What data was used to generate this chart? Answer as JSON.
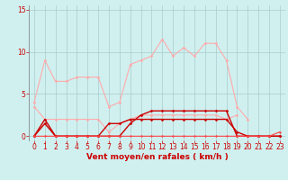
{
  "x": [
    0,
    1,
    2,
    3,
    4,
    5,
    6,
    7,
    8,
    9,
    10,
    11,
    12,
    13,
    14,
    15,
    16,
    17,
    18,
    19,
    20,
    21,
    22,
    23
  ],
  "lines": [
    {
      "y": [
        4.0,
        9.0,
        6.5,
        6.5,
        7.0,
        7.0,
        7.0,
        3.5,
        4.0,
        8.5,
        9.0,
        9.5,
        11.5,
        9.5,
        10.5,
        9.5,
        11.0,
        11.0,
        9.0,
        3.5,
        2.0,
        null,
        null,
        null
      ],
      "color": "#ffaaaa",
      "lw": 0.8,
      "marker": "D",
      "ms": 1.5
    },
    {
      "y": [
        3.5,
        2.0,
        2.0,
        2.0,
        2.0,
        2.0,
        2.0,
        0.5,
        1.5,
        2.0,
        2.5,
        2.5,
        2.5,
        2.5,
        2.5,
        2.5,
        2.5,
        2.5,
        2.0,
        2.5,
        null,
        null,
        null,
        null
      ],
      "color": "#ffaaaa",
      "lw": 0.8,
      "marker": "D",
      "ms": 1.5
    },
    {
      "y": [
        0.0,
        2.0,
        0.0,
        0.0,
        0.0,
        0.0,
        0.0,
        1.5,
        1.5,
        2.0,
        2.0,
        2.0,
        2.0,
        2.0,
        2.0,
        2.0,
        2.0,
        2.0,
        2.0,
        0.5,
        0.0,
        0.0,
        0.0,
        0.0
      ],
      "color": "#cc0000",
      "lw": 1.0,
      "marker": "D",
      "ms": 1.5
    },
    {
      "y": [
        0.0,
        1.5,
        0.0,
        0.0,
        0.0,
        0.0,
        0.0,
        0.0,
        0.0,
        1.5,
        2.5,
        3.0,
        3.0,
        3.0,
        3.0,
        3.0,
        3.0,
        3.0,
        3.0,
        0.0,
        0.0,
        0.0,
        0.0,
        0.0
      ],
      "color": "#cc0000",
      "lw": 1.0,
      "marker": "D",
      "ms": 1.5
    },
    {
      "y": [
        0.0,
        0.0,
        0.0,
        0.0,
        0.0,
        0.0,
        0.0,
        0.0,
        0.0,
        0.0,
        0.0,
        0.0,
        0.0,
        0.0,
        0.0,
        0.0,
        0.0,
        0.0,
        0.0,
        0.0,
        0.0,
        0.0,
        0.0,
        0.5
      ],
      "color": "#ff4444",
      "lw": 0.8,
      "marker": "D",
      "ms": 1.2
    }
  ],
  "xlabel": "Vent moyen/en rafales ( km/h )",
  "xlim": [
    -0.5,
    23.5
  ],
  "ylim": [
    -0.5,
    15.5
  ],
  "yticks": [
    0,
    5,
    10,
    15
  ],
  "xticks": [
    0,
    1,
    2,
    3,
    4,
    5,
    6,
    7,
    8,
    9,
    10,
    11,
    12,
    13,
    14,
    15,
    16,
    17,
    18,
    19,
    20,
    21,
    22,
    23
  ],
  "bg_color": "#d0f0f0",
  "grid_color": "#aacccc",
  "tick_color": "#cc0000",
  "label_color": "#cc0000",
  "xlabel_fontsize": 6.5,
  "tick_fontsize": 5.5
}
